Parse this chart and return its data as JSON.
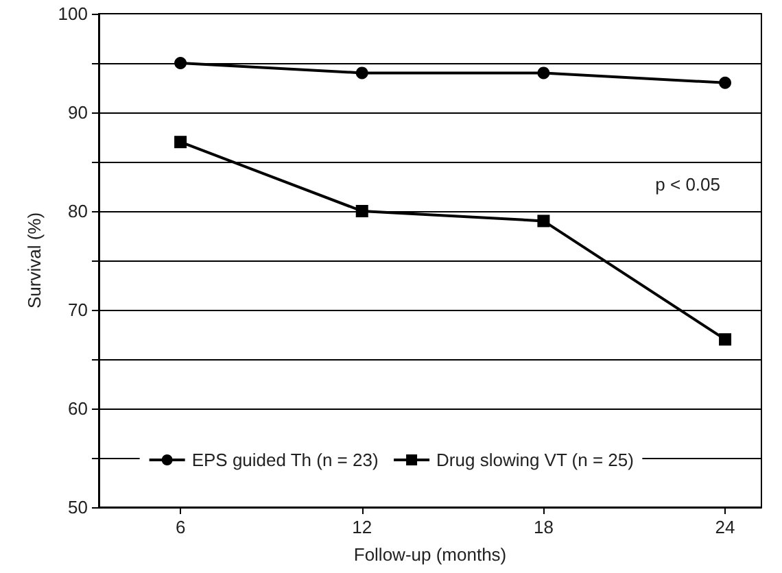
{
  "chart_data": {
    "type": "line",
    "xlabel": "Follow-up (months)",
    "ylabel": "Survival (%)",
    "x": [
      6,
      12,
      18,
      24
    ],
    "xlim": [
      3.3,
      25.2
    ],
    "xticks": [
      6,
      12,
      18,
      24
    ],
    "ylim": [
      50,
      100
    ],
    "yticks": [
      50,
      {
        "value": 55,
        "label": null
      },
      60,
      {
        "value": 65,
        "label": null
      },
      70,
      {
        "value": 75,
        "label": null
      },
      80,
      {
        "value": 85,
        "label": null
      },
      90,
      {
        "value": 95,
        "label": null
      },
      100
    ],
    "series": [
      {
        "name": "EPS guided Th (n = 23)",
        "color": "#000000",
        "marker": "circle",
        "values": [
          95,
          94,
          94,
          93
        ]
      },
      {
        "name": "Drug slowing VT (n = 25)",
        "color": "#000000",
        "marker": "square",
        "values": [
          87,
          80,
          79,
          67
        ]
      }
    ],
    "annotations": [
      "p < 0.05"
    ],
    "grid": "y",
    "legend": "bottom",
    "line_style": "solid"
  }
}
